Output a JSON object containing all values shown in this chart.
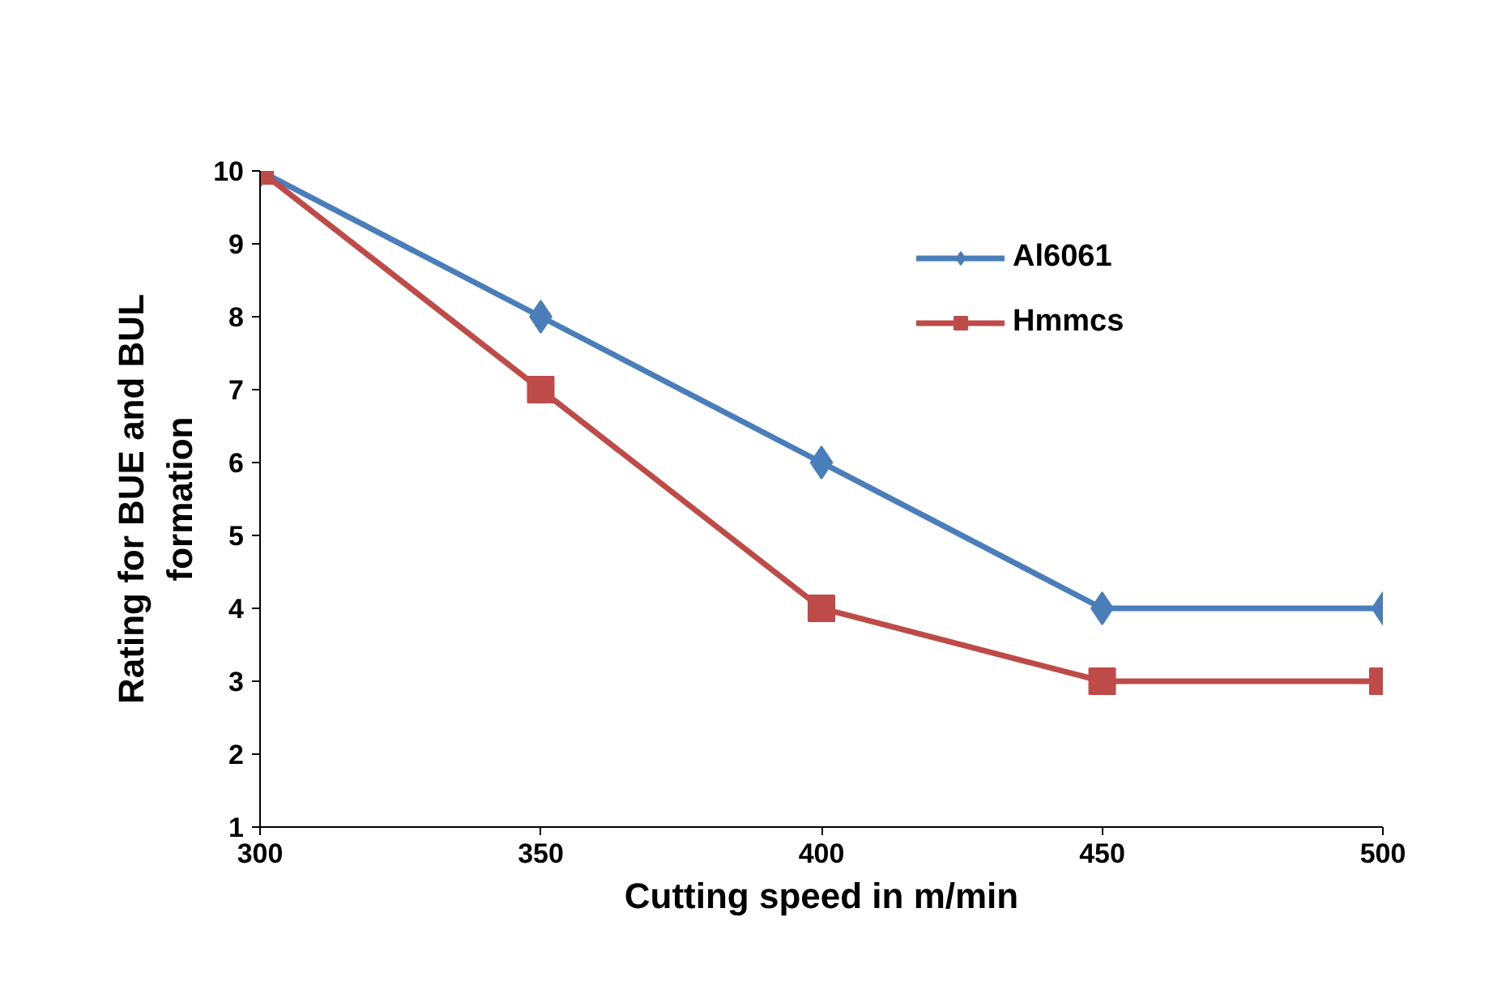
{
  "chart_data": {
    "type": "line",
    "xlabel": "Cutting speed in m/min",
    "ylabel": "Rating for BUE and BUL\nformation",
    "x": [
      300,
      350,
      400,
      450,
      500
    ],
    "series": [
      {
        "name": "Al6061",
        "color": "#4a7ebb",
        "values": [
          10,
          8,
          6,
          4,
          4
        ],
        "marker": "diamond"
      },
      {
        "name": "Hmmcs",
        "color": "#be4b48",
        "values": [
          10,
          7,
          4,
          3,
          3
        ],
        "marker": "square"
      }
    ],
    "xlim": [
      300,
      500
    ],
    "xticks": [
      300,
      350,
      400,
      450,
      500
    ],
    "ylim": [
      1,
      10
    ],
    "yticks": [
      1,
      2,
      3,
      4,
      5,
      6,
      7,
      8,
      9,
      10
    ],
    "grid": false,
    "legend": "top right",
    "line_style": "solid"
  }
}
